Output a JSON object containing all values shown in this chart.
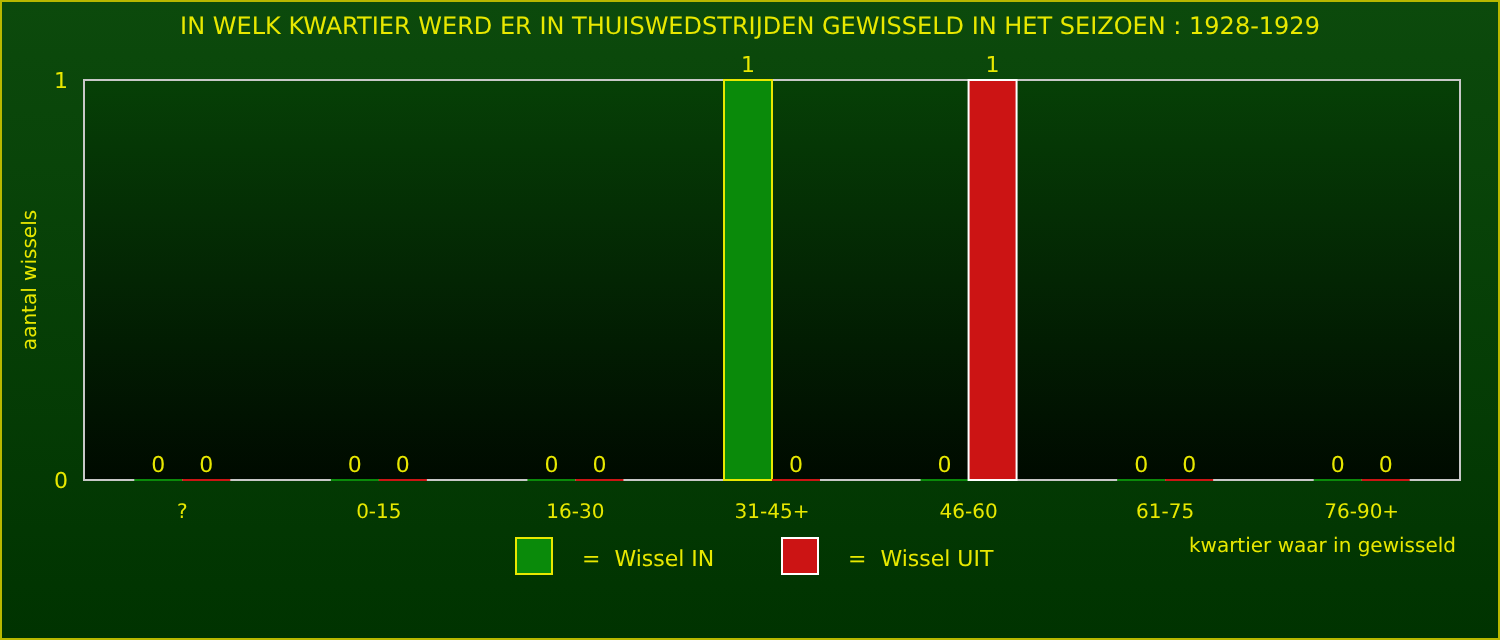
{
  "chart_data": {
    "type": "bar",
    "title": "IN WELK KWARTIER WERD ER IN THUISWEDSTRIJDEN GEWISSELD IN HET SEIZOEN : 1928-1929",
    "ylabel": "aantal wissels",
    "xlabel": "kwartier waar in gewisseld",
    "categories": [
      "?",
      "0-15",
      "16-30",
      "31-45+",
      "46-60",
      "61-75",
      "76-90+"
    ],
    "series": [
      {
        "name": "=  Wissel IN",
        "color": "#0a8a0a",
        "values": [
          0,
          0,
          0,
          1,
          0,
          0,
          0
        ]
      },
      {
        "name": "=  Wissel UIT",
        "color": "#cc1414",
        "values": [
          0,
          0,
          0,
          0,
          1,
          0,
          0
        ]
      }
    ],
    "ylim": [
      0,
      1
    ],
    "yticks": [
      0,
      1
    ],
    "data_labels": true,
    "legend": "bottom",
    "grid": false
  }
}
